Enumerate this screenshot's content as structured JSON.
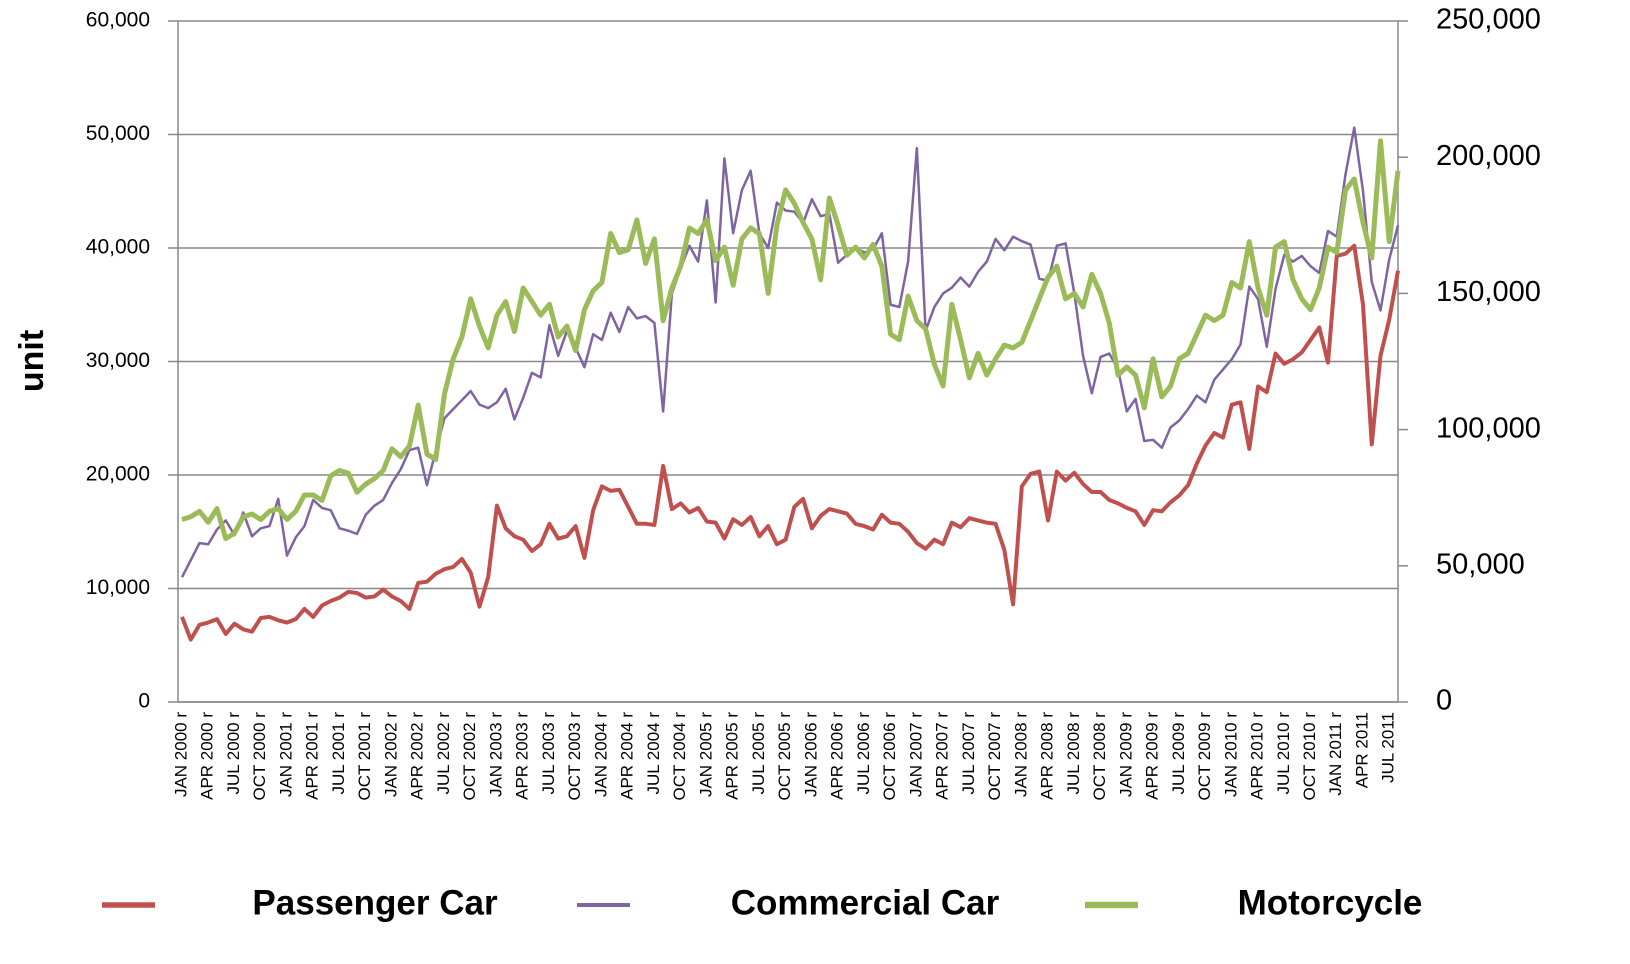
{
  "chart_data": {
    "type": "line",
    "y_label": "unit",
    "categories": [
      "JAN 2000 r",
      null,
      null,
      "APR 2000 r",
      null,
      null,
      "JUL 2000 r",
      null,
      null,
      "OCT 2000 r",
      null,
      null,
      "JAN 2001 r",
      null,
      null,
      "APR 2001 r",
      null,
      null,
      "JUL 2001 r",
      null,
      null,
      "OCT 2001 r",
      null,
      null,
      "JAN 2002 r",
      null,
      null,
      "APR 2002 r",
      null,
      null,
      "JUL 2002 r",
      null,
      null,
      "OCT 2002 r",
      null,
      null,
      "JAN 2003 r",
      null,
      null,
      "APR 2003 r",
      null,
      null,
      "JUL 2003 r",
      null,
      null,
      "OCT 2003 r",
      null,
      null,
      "JAN 2004 r",
      null,
      null,
      "APR 2004 r",
      null,
      null,
      "JUL 2004 r",
      null,
      null,
      "OCT 2004 r",
      null,
      null,
      "JAN 2005 r",
      null,
      null,
      "APR 2005 r",
      null,
      null,
      "JUL 2005 r",
      null,
      null,
      "OCT 2005 r",
      null,
      null,
      "JAN 2006 r",
      null,
      null,
      "APR 2006 r",
      null,
      null,
      "JUL 2006 r",
      null,
      null,
      "OCT 2006 r",
      null,
      null,
      "JAN 2007 r",
      null,
      null,
      "APR 2007 r",
      null,
      null,
      "JUL 2007 r",
      null,
      null,
      "OCT 2007 r",
      null,
      null,
      "JAN 2008 r",
      null,
      null,
      "APR 2008 r",
      null,
      null,
      "JUL 2008 r",
      null,
      null,
      "OCT 2008 r",
      null,
      null,
      "JAN 2009 r",
      null,
      null,
      "APR 2009 r",
      null,
      null,
      "JUL 2009 r",
      null,
      null,
      "OCT 2009 r",
      null,
      null,
      "JAN 2010 r",
      null,
      null,
      "APR 2010 r",
      null,
      null,
      "JUL 2010 r",
      null,
      null,
      "OCT 2010 r",
      null,
      null,
      "JAN 2011 r",
      null,
      null,
      "APR 2011",
      null,
      null,
      "JUL 2011",
      null
    ],
    "ylim": [
      0,
      60000
    ],
    "yticks": [
      0,
      {
        "value": 10000,
        "label": "10,000"
      },
      {
        "value": 20000,
        "label": "20,000"
      },
      {
        "value": 30000,
        "label": "30,000"
      },
      {
        "value": 40000,
        "label": "40,000"
      },
      {
        "value": 50000,
        "label": "50,000"
      },
      {
        "value": 60000,
        "label": "60,000"
      }
    ],
    "y2lim": [
      0,
      250000
    ],
    "y2ticks": [
      0,
      {
        "value": 50000,
        "label": "50,000"
      },
      {
        "value": 100000,
        "label": "100,000"
      },
      {
        "value": 150000,
        "label": "150,000"
      },
      {
        "value": 200000,
        "label": "200,000"
      },
      {
        "value": 250000,
        "label": "250,000"
      }
    ],
    "grid": true,
    "legend": "bottom",
    "series": [
      {
        "name": "Passenger Car",
        "color": "#c0504d",
        "width": 4,
        "values": [
          7500,
          5500,
          6800,
          7000,
          7300,
          6000,
          6900,
          6400,
          6200,
          7400,
          7500,
          7200,
          7000,
          7300,
          8200,
          7500,
          8500,
          8900,
          9200,
          9700,
          9600,
          9200,
          9300,
          9900,
          9300,
          8900,
          8200,
          10500,
          10600,
          11300,
          11700,
          11900,
          12600,
          11400,
          8400,
          11000,
          17300,
          15300,
          14600,
          14300,
          13300,
          13900,
          15700,
          14400,
          14600,
          15500,
          12700,
          16900,
          19000,
          18600,
          18700,
          17200,
          15700,
          15700,
          15600,
          20800,
          17000,
          17500,
          16700,
          17100,
          15900,
          15800,
          14400,
          16100,
          15600,
          16300,
          14600,
          15500,
          13900,
          14300,
          17200,
          17900,
          15300,
          16400,
          17000,
          16800,
          16600,
          15700,
          15500,
          15200,
          16500,
          15800,
          15700,
          15000,
          14000,
          13500,
          14300,
          13900,
          15800,
          15400,
          16200,
          16000,
          15800,
          15700,
          13400,
          8600,
          19000,
          20100,
          20300,
          16000,
          20300,
          19500,
          20200,
          19200,
          18500,
          18500,
          17800,
          17500,
          17100,
          16800,
          15600,
          16900,
          16800,
          17600,
          18200,
          19100,
          21000,
          22600,
          23700,
          23300,
          26200,
          26400,
          22300,
          27800,
          27300,
          30700,
          29800,
          30200,
          30800,
          31900,
          33000,
          29900,
          39300,
          39500,
          40200,
          35000,
          22700,
          30500,
          33700,
          38000
        ]
      },
      {
        "name": "Commercial Car",
        "color": "#8064a2",
        "width": 2.5,
        "values": [
          11000,
          12500,
          14000,
          13900,
          15200,
          16000,
          14700,
          16700,
          14600,
          15300,
          15500,
          17900,
          12900,
          14500,
          15500,
          17800,
          17100,
          16900,
          15300,
          15100,
          14800,
          16500,
          17300,
          17800,
          19300,
          20500,
          22200,
          22400,
          19100,
          22100,
          25000,
          25800,
          26600,
          27400,
          26200,
          25900,
          26400,
          27600,
          24900,
          26800,
          29000,
          28600,
          33200,
          30500,
          32700,
          31200,
          29500,
          32400,
          31900,
          34300,
          32600,
          34800,
          33800,
          34000,
          33400,
          25600,
          36000,
          38200,
          40200,
          38800,
          44200,
          35200,
          47900,
          41300,
          45100,
          46800,
          41300,
          40000,
          44000,
          43300,
          43200,
          42200,
          44300,
          42800,
          43000,
          38700,
          39400,
          40000,
          39600,
          39900,
          41300,
          35000,
          34800,
          38800,
          48800,
          32700,
          34800,
          36000,
          36500,
          37400,
          36600,
          37900,
          38800,
          40800,
          39800,
          41000,
          40600,
          40300,
          37300,
          37100,
          40200,
          40400,
          36000,
          30500,
          27200,
          30400,
          30700,
          29300,
          25600,
          26700,
          23000,
          23100,
          22400,
          24200,
          24800,
          25800,
          27000,
          26400,
          28400,
          29300,
          30200,
          31500,
          36600,
          35500,
          31300,
          36400,
          39400,
          38800,
          39300,
          38400,
          37800,
          41500,
          41000,
          46500,
          50600,
          45000,
          37000,
          34500,
          39000,
          42000
        ]
      },
      {
        "name": "Motorcycle",
        "color": "#9bbb59",
        "width": 5,
        "axis": "y2",
        "values": [
          67000,
          68000,
          70000,
          66000,
          71000,
          60000,
          62000,
          68000,
          69000,
          67000,
          70000,
          71000,
          67000,
          70000,
          76000,
          76000,
          74000,
          83000,
          85000,
          84000,
          77000,
          80000,
          82000,
          85000,
          93000,
          90000,
          94000,
          109000,
          91000,
          89000,
          113000,
          126000,
          134000,
          148000,
          138000,
          130000,
          142000,
          147000,
          136000,
          152000,
          147000,
          142000,
          146000,
          134000,
          138000,
          129000,
          144000,
          151000,
          154000,
          172000,
          165000,
          166000,
          177000,
          161000,
          170000,
          140000,
          152000,
          160000,
          174000,
          172000,
          177000,
          162000,
          167000,
          153000,
          170000,
          174000,
          172000,
          150000,
          175000,
          188000,
          183000,
          176000,
          170000,
          155000,
          185000,
          175000,
          164000,
          167000,
          163000,
          168000,
          160000,
          135000,
          133000,
          149000,
          140000,
          137000,
          124000,
          116000,
          146000,
          133000,
          119000,
          128000,
          120000,
          126000,
          131000,
          130000,
          132000,
          140000,
          148000,
          156000,
          160000,
          148000,
          150000,
          145000,
          157000,
          150000,
          139000,
          120000,
          123000,
          120000,
          108000,
          126000,
          112000,
          116000,
          126000,
          128000,
          135000,
          142000,
          140000,
          142000,
          154000,
          152000,
          169000,
          152000,
          142000,
          167000,
          169000,
          155000,
          148000,
          144000,
          152000,
          167000,
          165000,
          188000,
          192000,
          176000,
          163000,
          206000,
          169000,
          195000
        ]
      }
    ]
  }
}
